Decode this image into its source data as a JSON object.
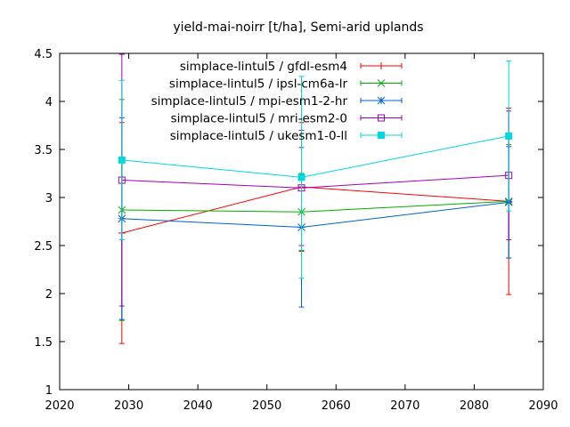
{
  "chart_data": {
    "type": "line",
    "title": "yield-mai-noirr [t/ha], Semi-arid uplands",
    "xlabel": "",
    "ylabel": "",
    "xlim": [
      2020,
      2090
    ],
    "ylim": [
      1,
      4.5
    ],
    "xticks": [
      2020,
      2030,
      2040,
      2050,
      2060,
      2070,
      2080,
      2090
    ],
    "yticks": [
      1,
      1.5,
      2,
      2.5,
      3,
      3.5,
      4,
      4.5
    ],
    "ytick_labels": [
      "1",
      "1.5",
      "2",
      "2.5",
      "3",
      "3.5",
      "4",
      "4.5"
    ],
    "grid": false,
    "legend_position": "top-right",
    "x": [
      2029,
      2055,
      2085
    ],
    "series": [
      {
        "name": "simplace-lintul5 / gfdl-esm4",
        "color": "#ff0000",
        "marker": "plus",
        "values": [
          2.63,
          3.11,
          2.96
        ],
        "err_low": [
          1.48,
          2.44,
          1.99
        ],
        "err_high": [
          3.78,
          3.78,
          3.93
        ]
      },
      {
        "name": "simplace-lintul5 / ipsl-cm6a-lr",
        "color": "#00b000",
        "marker": "cross",
        "values": [
          2.87,
          2.85,
          2.96
        ],
        "err_low": [
          1.72,
          2.45,
          2.37
        ],
        "err_high": [
          4.02,
          3.25,
          3.55
        ]
      },
      {
        "name": "simplace-lintul5 / mpi-esm1-2-hr",
        "color": "#0060d0",
        "marker": "star",
        "values": [
          2.78,
          2.69,
          2.95
        ],
        "err_low": [
          1.73,
          1.86,
          2.37
        ],
        "err_high": [
          3.83,
          3.52,
          3.53
        ]
      },
      {
        "name": "simplace-lintul5 / mri-esm2-0",
        "color": "#a000c0",
        "marker": "square-open",
        "values": [
          3.18,
          3.1,
          3.23
        ],
        "err_low": [
          1.87,
          2.5,
          2.56
        ],
        "err_high": [
          4.49,
          3.7,
          3.9
        ]
      },
      {
        "name": "simplace-lintul5 / ukesm1-0-ll",
        "color": "#00d8e0",
        "marker": "square-filled",
        "values": [
          3.39,
          3.21,
          3.64
        ],
        "err_low": [
          2.56,
          2.16,
          2.86
        ],
        "err_high": [
          4.22,
          4.26,
          4.42
        ]
      }
    ]
  }
}
